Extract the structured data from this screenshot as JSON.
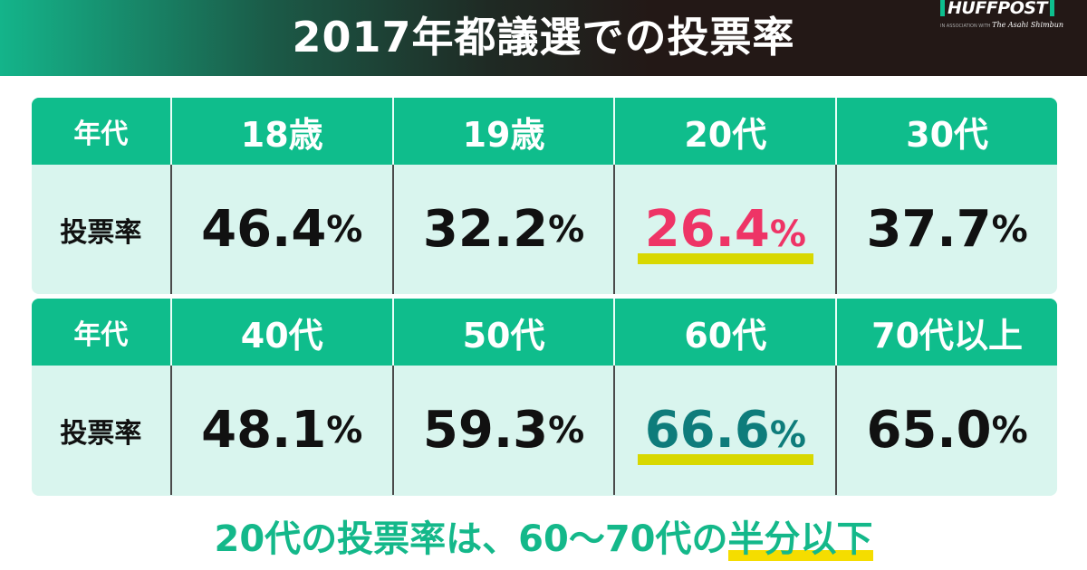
{
  "header": {
    "title": "2017年都議選での投票率",
    "logo": {
      "brand": "HUFFPOST",
      "sub_prefix": "IN ASSOCIATION WITH",
      "sub_partner": "The Asahi Shimbun"
    }
  },
  "tables": [
    {
      "row_label_head": "年代",
      "row_label_data": "投票率",
      "columns": [
        {
          "age": "18歳",
          "rate": "46.4",
          "unit": "%"
        },
        {
          "age": "19歳",
          "rate": "32.2",
          "unit": "%"
        },
        {
          "age": "20代",
          "rate": "26.4",
          "unit": "%",
          "highlight": "red"
        },
        {
          "age": "30代",
          "rate": "37.7",
          "unit": "%"
        }
      ]
    },
    {
      "row_label_head": "年代",
      "row_label_data": "投票率",
      "columns": [
        {
          "age": "40代",
          "rate": "48.1",
          "unit": "%"
        },
        {
          "age": "50代",
          "rate": "59.3",
          "unit": "%"
        },
        {
          "age": "60代",
          "rate": "66.6",
          "unit": "%",
          "highlight": "teal"
        },
        {
          "age": "70代以上",
          "rate": "65.0",
          "unit": "%"
        }
      ]
    }
  ],
  "footer": {
    "prefix": "20代の投票率は、60～70代の",
    "emphasis": "半分以下"
  },
  "colors": {
    "header_green": "#0fbd8c",
    "cell_bg": "#d9f5ee",
    "highlight_red": "#ee3466",
    "highlight_teal": "#0e7c7b",
    "underline_yellow": "#d8d800",
    "footer_green": "#14b88a"
  }
}
